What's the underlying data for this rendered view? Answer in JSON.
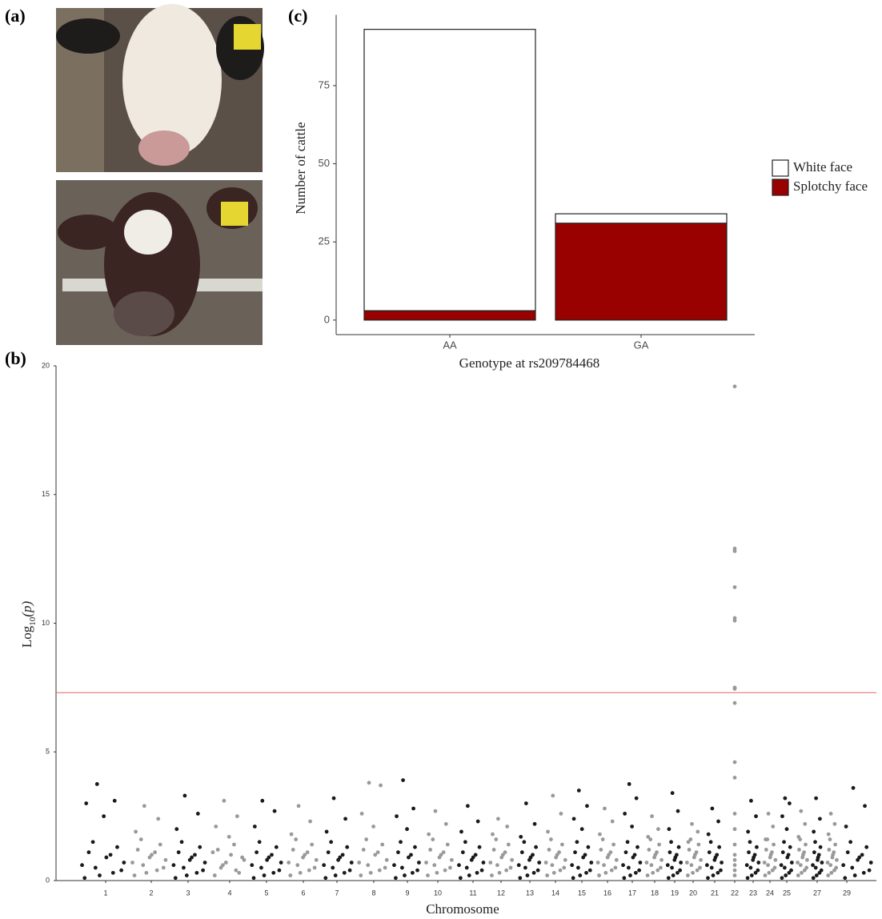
{
  "panels": {
    "a": "(a)",
    "b": "(b)",
    "c": "(c)"
  },
  "chart_data": [
    {
      "type": "bar",
      "stacked": true,
      "x_label": "Genotype at rs209784468",
      "y_label": "Number of cattle",
      "categories": [
        "AA",
        "GA"
      ],
      "series": [
        {
          "name": "White face",
          "color": "#ffffff",
          "values": [
            90,
            3
          ]
        },
        {
          "name": "Splotchy face",
          "color": "#990000",
          "values": [
            3,
            31
          ]
        }
      ],
      "ylim": [
        -4.65,
        97.65
      ],
      "yticks": [
        0,
        25,
        50,
        75
      ]
    },
    {
      "type": "manhattan",
      "x_label": "Chromosome",
      "y_label": {
        "base": "Log",
        "sub": "10",
        "arg": "(p)"
      },
      "categories": [
        "1",
        "2",
        "3",
        "4",
        "5",
        "6",
        "7",
        "8",
        "9",
        "10",
        "11",
        "12",
        "13",
        "14",
        "15",
        "16",
        "17",
        "18",
        "19",
        "20",
        "21",
        "22",
        "23",
        "24",
        "25",
        null,
        "27",
        null,
        "29"
      ],
      "colors": [
        "#1a1a1a",
        "#999999"
      ],
      "values": [
        [
          0.1,
          0.3,
          0.5,
          0.7,
          0.9,
          1.1,
          1.3,
          0.2,
          0.6,
          1.0,
          1.5,
          0.4,
          2.5,
          3.0,
          3.1,
          3.75
        ],
        [
          0.2,
          0.4,
          0.6,
          0.8,
          1.0,
          1.2,
          1.4,
          0.3,
          0.7,
          1.1,
          1.6,
          0.5,
          0.9,
          1.9,
          2.4,
          2.9
        ],
        [
          0.1,
          0.3,
          0.5,
          0.7,
          0.9,
          1.1,
          1.3,
          0.2,
          0.6,
          1.0,
          1.5,
          0.4,
          0.8,
          2.0,
          2.6,
          3.3
        ],
        [
          0.2,
          0.4,
          0.6,
          0.8,
          1.0,
          1.2,
          0.3,
          0.7,
          1.1,
          1.4,
          0.5,
          0.9,
          1.7,
          2.1,
          2.5,
          3.1
        ],
        [
          0.1,
          0.3,
          0.5,
          0.7,
          0.9,
          1.1,
          1.3,
          0.2,
          0.6,
          1.0,
          1.5,
          0.4,
          0.8,
          2.1,
          2.7,
          3.1
        ],
        [
          0.2,
          0.4,
          0.6,
          0.8,
          1.0,
          1.2,
          1.4,
          0.3,
          0.7,
          1.1,
          1.6,
          0.5,
          0.9,
          1.8,
          2.3,
          2.9
        ],
        [
          0.1,
          0.3,
          0.5,
          0.7,
          0.9,
          1.1,
          1.3,
          0.2,
          0.6,
          1.0,
          1.5,
          0.4,
          0.8,
          1.9,
          2.4,
          3.2
        ],
        [
          0.2,
          0.4,
          0.6,
          0.8,
          1.0,
          1.2,
          1.4,
          0.3,
          0.7,
          1.1,
          1.6,
          0.5,
          2.1,
          2.6,
          3.7,
          3.8
        ],
        [
          0.1,
          0.3,
          0.5,
          0.7,
          0.9,
          1.1,
          1.3,
          0.2,
          0.6,
          1.0,
          1.5,
          0.4,
          2.0,
          2.5,
          2.8,
          3.9
        ],
        [
          0.2,
          0.4,
          0.6,
          0.8,
          1.0,
          1.2,
          1.4,
          0.3,
          0.7,
          1.1,
          1.6,
          0.5,
          0.9,
          1.8,
          2.2,
          2.7
        ],
        [
          0.1,
          0.3,
          0.5,
          0.7,
          0.9,
          1.1,
          1.3,
          0.2,
          0.6,
          1.0,
          1.5,
          0.4,
          0.8,
          1.9,
          2.3,
          2.9
        ],
        [
          0.2,
          0.4,
          0.6,
          0.8,
          1.0,
          1.2,
          1.4,
          0.3,
          0.7,
          1.1,
          1.6,
          0.5,
          0.9,
          1.8,
          2.1,
          2.4
        ],
        [
          0.1,
          0.3,
          0.5,
          0.7,
          0.9,
          1.1,
          1.3,
          0.2,
          0.6,
          1.0,
          1.5,
          0.4,
          0.8,
          1.7,
          2.2,
          3.0
        ],
        [
          0.2,
          0.4,
          0.6,
          0.8,
          1.0,
          1.2,
          1.4,
          0.3,
          0.7,
          1.1,
          1.6,
          0.5,
          0.9,
          1.9,
          2.6,
          3.3
        ],
        [
          0.1,
          0.3,
          0.5,
          0.7,
          0.9,
          1.1,
          1.3,
          0.2,
          0.6,
          1.0,
          1.5,
          0.4,
          2.0,
          2.4,
          2.9,
          3.5
        ],
        [
          0.2,
          0.4,
          0.6,
          0.8,
          1.0,
          1.2,
          1.4,
          0.3,
          0.7,
          1.1,
          1.6,
          0.5,
          0.9,
          1.8,
          2.3,
          2.8
        ],
        [
          0.1,
          0.3,
          0.5,
          0.7,
          0.9,
          1.1,
          1.3,
          0.2,
          0.6,
          1.0,
          1.5,
          0.4,
          2.1,
          2.6,
          3.2,
          3.75
        ],
        [
          0.2,
          0.4,
          0.6,
          0.8,
          1.0,
          1.2,
          1.4,
          0.3,
          0.7,
          1.1,
          1.6,
          0.5,
          0.9,
          1.7,
          2.0,
          2.5
        ],
        [
          0.1,
          0.3,
          0.5,
          0.7,
          0.9,
          1.1,
          1.3,
          0.2,
          0.6,
          1.0,
          1.5,
          0.4,
          0.8,
          2.0,
          2.7,
          3.4
        ],
        [
          0.2,
          0.4,
          0.6,
          0.8,
          1.0,
          1.2,
          1.4,
          0.3,
          0.7,
          1.1,
          1.6,
          0.5,
          0.9,
          1.5,
          1.9,
          2.2
        ],
        [
          0.1,
          0.3,
          0.5,
          0.7,
          0.9,
          1.1,
          1.3,
          0.2,
          0.6,
          1.0,
          1.5,
          0.4,
          0.8,
          1.8,
          2.3,
          2.8
        ],
        [
          0.2,
          0.4,
          0.6,
          0.8,
          1.0,
          1.4,
          2.0,
          2.6,
          4.0,
          4.6,
          6.9,
          7.45,
          7.5,
          10.1,
          10.2,
          11.4,
          12.8,
          12.9,
          19.2
        ],
        [
          0.1,
          0.3,
          0.5,
          0.7,
          0.9,
          1.1,
          1.3,
          0.2,
          0.6,
          1.0,
          1.5,
          0.4,
          0.8,
          1.9,
          2.5,
          3.1
        ],
        [
          0.2,
          0.4,
          0.6,
          0.8,
          1.0,
          1.2,
          1.4,
          0.3,
          0.7,
          1.1,
          1.6,
          0.5,
          0.9,
          1.6,
          2.1,
          2.6
        ],
        [
          0.1,
          0.3,
          0.5,
          0.7,
          0.9,
          1.1,
          1.3,
          0.2,
          0.6,
          1.0,
          1.5,
          0.4,
          2.0,
          2.5,
          3.0,
          3.2
        ],
        [
          0.2,
          0.4,
          0.6,
          0.8,
          1.0,
          1.2,
          1.4,
          0.3,
          0.7,
          1.1,
          1.6,
          0.5,
          0.9,
          1.7,
          2.2,
          2.7
        ],
        [
          0.1,
          0.3,
          0.5,
          0.7,
          0.9,
          1.1,
          1.3,
          0.2,
          0.6,
          1.0,
          1.5,
          0.4,
          0.8,
          1.9,
          2.4,
          3.2
        ],
        [
          0.2,
          0.4,
          0.6,
          0.8,
          1.0,
          1.2,
          1.4,
          0.3,
          0.7,
          1.1,
          1.6,
          0.5,
          0.9,
          1.8,
          2.2,
          2.6
        ],
        [
          0.1,
          0.3,
          0.5,
          0.7,
          0.9,
          1.1,
          1.3,
          0.2,
          0.6,
          1.0,
          1.5,
          0.4,
          0.8,
          2.1,
          2.9,
          3.6
        ]
      ],
      "threshold": 7.3,
      "threshold_color": "#e06666",
      "ylim": [
        0,
        20
      ],
      "yticks": [
        0,
        5,
        10,
        15,
        20
      ]
    }
  ]
}
